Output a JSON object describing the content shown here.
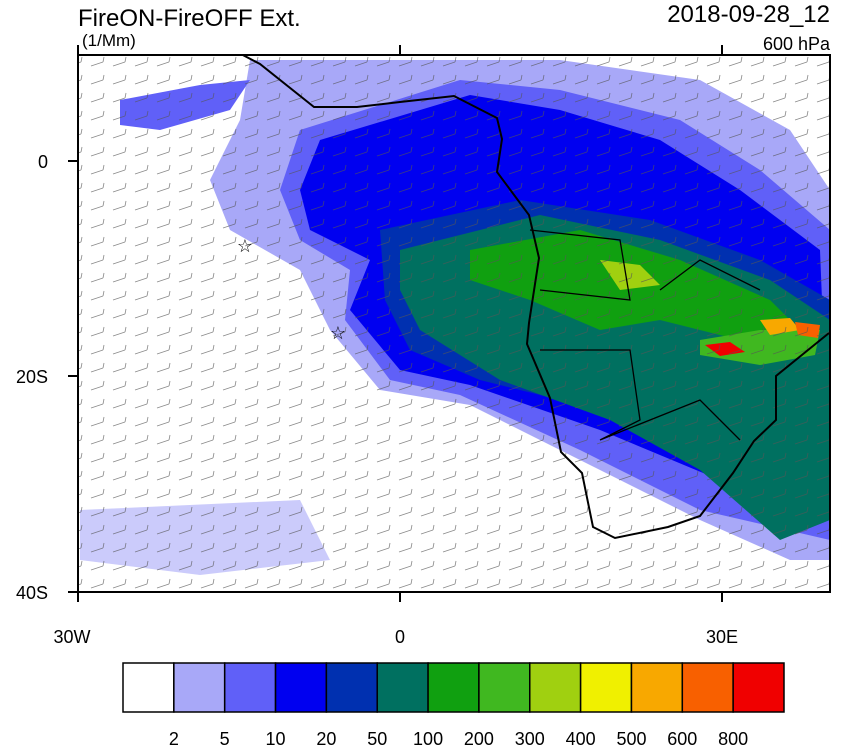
{
  "header": {
    "title": "FireON-FireOFF Ext.",
    "units": "(1/Mm)",
    "date": "2018-09-28_12",
    "level": "600 hPa"
  },
  "axes": {
    "lat_labels": [
      "0",
      "20S",
      "40S"
    ],
    "lon_labels": [
      "30W",
      "0",
      "30E"
    ]
  },
  "colorbar": {
    "colors": [
      "#ffffff",
      "#a8a8f8",
      "#6060f8",
      "#0000f0",
      "#0030b0",
      "#007060",
      "#10a010",
      "#40b820",
      "#a0d010",
      "#f0f000",
      "#f8a800",
      "#f86000",
      "#f00000"
    ],
    "labels": [
      "2",
      "5",
      "10",
      "20",
      "50",
      "100",
      "200",
      "300",
      "400",
      "500",
      "600",
      "800"
    ]
  }
}
